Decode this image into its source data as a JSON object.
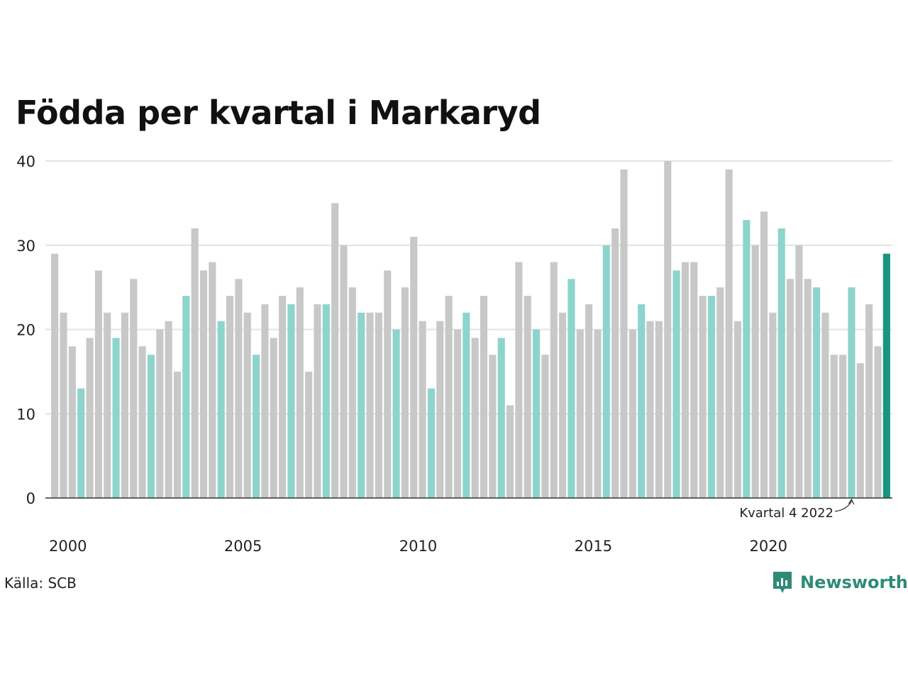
{
  "header": {
    "title": "Födda per kvartal i Markaryd"
  },
  "footer": {
    "source": "Källa: SCB",
    "brand": "Newsworthy"
  },
  "colors": {
    "bar": "#c8c8c8",
    "highlight_q4": "#8dd4cc",
    "latest": "#1a9482",
    "axis": "#333333",
    "grid": "#e3e3e3"
  },
  "icons": {
    "brand_logo": "newsworthy-logo-icon"
  },
  "chart_data": {
    "type": "bar",
    "title": "Födda per kvartal i Markaryd",
    "xlabel": "",
    "ylabel": "",
    "ylim": [
      0,
      40
    ],
    "yticks": [
      0,
      10,
      20,
      30,
      40
    ],
    "xtick_labels": [
      "2000",
      "2005",
      "2010",
      "2015",
      "2020"
    ],
    "grid": true,
    "start_year": 2000,
    "values": [
      29,
      22,
      18,
      13,
      19,
      27,
      22,
      19,
      22,
      26,
      18,
      17,
      20,
      21,
      15,
      24,
      32,
      27,
      28,
      21,
      24,
      26,
      22,
      17,
      23,
      19,
      24,
      23,
      25,
      15,
      23,
      23,
      35,
      30,
      25,
      22,
      22,
      22,
      27,
      20,
      25,
      31,
      21,
      13,
      21,
      24,
      20,
      22,
      19,
      24,
      17,
      19,
      11,
      28,
      24,
      20,
      17,
      28,
      22,
      26,
      20,
      23,
      20,
      30,
      32,
      39,
      20,
      23,
      21,
      21,
      40,
      27,
      28,
      28,
      24,
      24,
      25,
      39,
      21,
      33,
      30,
      34,
      22,
      32,
      26,
      30,
      26,
      25,
      22,
      17,
      17,
      25,
      16,
      23,
      18,
      29
    ],
    "annotation": "Kvartal 4 2022"
  }
}
